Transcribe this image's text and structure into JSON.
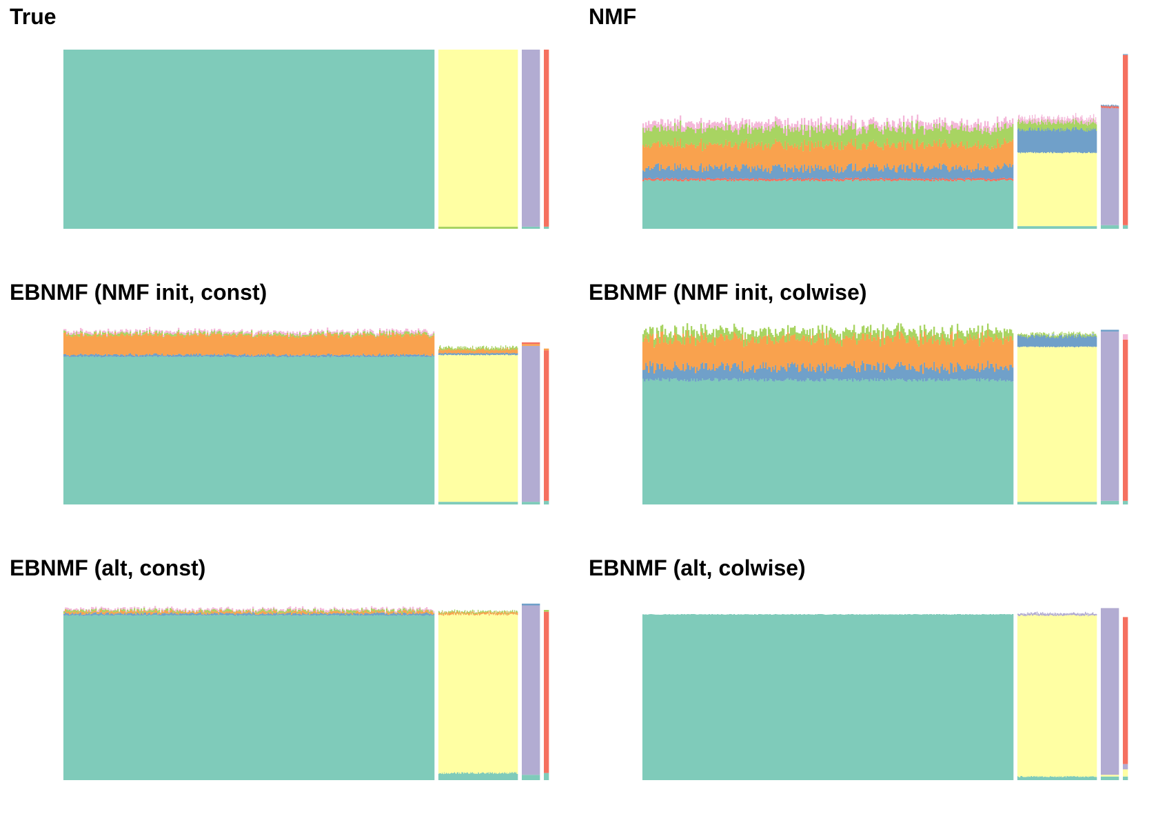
{
  "palette": {
    "teal": "#7fcbba",
    "yellow": "#ffffa3",
    "purple": "#b2acd2",
    "red": "#f5705f",
    "blue": "#70a0c9",
    "orange": "#f9a24e",
    "green": "#a8d462",
    "pink": "#f4b8d9"
  },
  "chart_data": [
    {
      "type": "structure-plot",
      "title": "True",
      "groups": [
        {
          "n": 400,
          "layers": [
            {
              "color": "teal",
              "value": 1.0
            }
          ]
        },
        {
          "n": 85,
          "layers": [
            {
              "color": "green",
              "value": 0.012
            },
            {
              "color": "yellow",
              "value": 0.988
            }
          ]
        },
        {
          "n": 20,
          "layers": [
            {
              "color": "teal",
              "value": 0.012
            },
            {
              "color": "purple",
              "value": 0.988
            }
          ]
        },
        {
          "n": 6,
          "layers": [
            {
              "color": "teal",
              "value": 0.012
            },
            {
              "color": "red",
              "value": 0.988
            }
          ]
        }
      ]
    },
    {
      "type": "structure-plot",
      "title": "NMF",
      "groups": [
        {
          "n": 400,
          "layers": [
            {
              "color": "teal",
              "value": 0.27,
              "jitter": 0.006
            },
            {
              "color": "red",
              "value": 0.01
            },
            {
              "color": "blue",
              "value": 0.06,
              "jitter": 0.025
            },
            {
              "color": "orange",
              "value": 0.13,
              "jitter": 0.015
            },
            {
              "color": "green",
              "value": 0.09,
              "jitter": 0.012
            },
            {
              "color": "pink",
              "value": 0.03,
              "jitter": 0.01
            }
          ]
        },
        {
          "n": 85,
          "layers": [
            {
              "color": "teal",
              "value": 0.015
            },
            {
              "color": "yellow",
              "value": 0.41,
              "jitter": 0.004
            },
            {
              "color": "blue",
              "value": 0.13,
              "jitter": 0.012
            },
            {
              "color": "green",
              "value": 0.04,
              "jitter": 0.01
            },
            {
              "color": "pink",
              "value": 0.02,
              "jitter": 0.008
            }
          ]
        },
        {
          "n": 20,
          "layers": [
            {
              "color": "teal",
              "value": 0.02
            },
            {
              "color": "purple",
              "value": 0.655,
              "jitter": 0.004
            },
            {
              "color": "red",
              "value": 0.01
            },
            {
              "color": "blue",
              "value": 0.005
            }
          ]
        },
        {
          "n": 6,
          "layers": [
            {
              "color": "teal",
              "value": 0.02
            },
            {
              "color": "red",
              "value": 0.95
            },
            {
              "color": "blue",
              "value": 0.005
            }
          ]
        }
      ]
    },
    {
      "type": "structure-plot",
      "title": "EBNMF (NMF init, const)",
      "groups": [
        {
          "n": 400,
          "layers": [
            {
              "color": "teal",
              "value": 0.825,
              "jitter": 0.004
            },
            {
              "color": "blue",
              "value": 0.01,
              "jitter": 0.006
            },
            {
              "color": "orange",
              "value": 0.11,
              "jitter": 0.012
            },
            {
              "color": "green",
              "value": 0.01,
              "jitter": 0.006
            },
            {
              "color": "pink",
              "value": 0.01,
              "jitter": 0.006
            }
          ]
        },
        {
          "n": 85,
          "layers": [
            {
              "color": "teal",
              "value": 0.015
            },
            {
              "color": "yellow",
              "value": 0.82,
              "jitter": 0.003
            },
            {
              "color": "blue",
              "value": 0.01
            },
            {
              "color": "orange",
              "value": 0.02,
              "jitter": 0.008
            },
            {
              "color": "green",
              "value": 0.01,
              "jitter": 0.005
            }
          ]
        },
        {
          "n": 20,
          "layers": [
            {
              "color": "teal",
              "value": 0.015
            },
            {
              "color": "purple",
              "value": 0.87
            },
            {
              "color": "orange",
              "value": 0.01
            },
            {
              "color": "red",
              "value": 0.01
            }
          ]
        },
        {
          "n": 6,
          "layers": [
            {
              "color": "teal",
              "value": 0.02
            },
            {
              "color": "red",
              "value": 0.84
            },
            {
              "color": "orange",
              "value": 0.01
            }
          ]
        }
      ]
    },
    {
      "type": "structure-plot",
      "title": "EBNMF (NMF init, colwise)",
      "groups": [
        {
          "n": 400,
          "layers": [
            {
              "color": "teal",
              "value": 0.695,
              "jitter": 0.01
            },
            {
              "color": "blue",
              "value": 0.07,
              "jitter": 0.03
            },
            {
              "color": "orange",
              "value": 0.16,
              "jitter": 0.02
            },
            {
              "color": "green",
              "value": 0.04,
              "jitter": 0.006
            }
          ]
        },
        {
          "n": 85,
          "layers": [
            {
              "color": "teal",
              "value": 0.015
            },
            {
              "color": "yellow",
              "value": 0.865,
              "jitter": 0.003
            },
            {
              "color": "blue",
              "value": 0.06,
              "jitter": 0.012
            },
            {
              "color": "green",
              "value": 0.01,
              "jitter": 0.005
            }
          ]
        },
        {
          "n": 20,
          "layers": [
            {
              "color": "teal",
              "value": 0.02
            },
            {
              "color": "purple",
              "value": 0.945
            },
            {
              "color": "blue",
              "value": 0.01
            }
          ]
        },
        {
          "n": 6,
          "layers": [
            {
              "color": "teal",
              "value": 0.02
            },
            {
              "color": "red",
              "value": 0.9
            },
            {
              "color": "pink",
              "value": 0.03
            }
          ]
        }
      ]
    },
    {
      "type": "structure-plot",
      "title": "EBNMF (alt, const)",
      "groups": [
        {
          "n": 400,
          "layers": [
            {
              "color": "teal",
              "value": 0.92,
              "jitter": 0.003
            },
            {
              "color": "blue",
              "value": 0.01,
              "jitter": 0.006
            },
            {
              "color": "orange",
              "value": 0.01,
              "jitter": 0.007
            },
            {
              "color": "green",
              "value": 0.008,
              "jitter": 0.007
            },
            {
              "color": "pink",
              "value": 0.007,
              "jitter": 0.006
            }
          ]
        },
        {
          "n": 85,
          "layers": [
            {
              "color": "teal",
              "value": 0.04,
              "jitter": 0.006
            },
            {
              "color": "yellow",
              "value": 0.885,
              "jitter": 0.003
            },
            {
              "color": "orange",
              "value": 0.01,
              "jitter": 0.005
            },
            {
              "color": "green",
              "value": 0.006,
              "jitter": 0.004
            }
          ]
        },
        {
          "n": 20,
          "layers": [
            {
              "color": "teal",
              "value": 0.03
            },
            {
              "color": "purple",
              "value": 0.945
            },
            {
              "color": "blue",
              "value": 0.01
            }
          ]
        },
        {
          "n": 6,
          "layers": [
            {
              "color": "teal",
              "value": 0.04
            },
            {
              "color": "red",
              "value": 0.9
            },
            {
              "color": "green",
              "value": 0.01
            }
          ]
        }
      ]
    },
    {
      "type": "structure-plot",
      "title": "EBNMF (alt, colwise)",
      "groups": [
        {
          "n": 400,
          "layers": [
            {
              "color": "teal",
              "value": 0.925,
              "jitter": 0.002
            }
          ]
        },
        {
          "n": 85,
          "layers": [
            {
              "color": "teal",
              "value": 0.02,
              "jitter": 0.004
            },
            {
              "color": "yellow",
              "value": 0.9,
              "jitter": 0.003
            },
            {
              "color": "purple",
              "value": 0.01,
              "jitter": 0.004
            }
          ]
        },
        {
          "n": 20,
          "layers": [
            {
              "color": "teal",
              "value": 0.02
            },
            {
              "color": "yellow",
              "value": 0.01
            },
            {
              "color": "purple",
              "value": 0.93
            }
          ]
        },
        {
          "n": 6,
          "layers": [
            {
              "color": "teal",
              "value": 0.02
            },
            {
              "color": "yellow",
              "value": 0.04
            },
            {
              "color": "purple",
              "value": 0.03
            },
            {
              "color": "red",
              "value": 0.82
            }
          ]
        }
      ]
    }
  ]
}
